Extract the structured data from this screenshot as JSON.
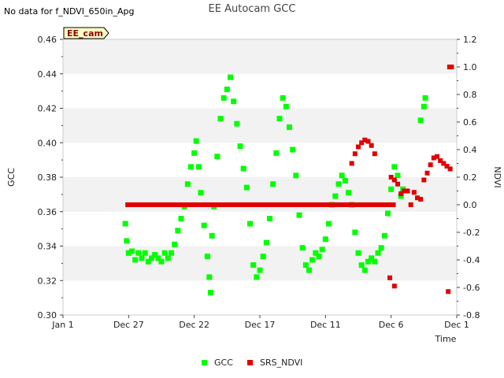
{
  "nodata_note": "No data for f_NDVI_650in_Apg",
  "badge": "EE_cam",
  "chart_data": {
    "type": "scatter",
    "title": "EE Autocam GCC",
    "xlabel": "Time",
    "ylabel": "GCC",
    "y2label": "NDVI",
    "x_categories": [
      "Jan 1",
      "Dec 27",
      "Dec 22",
      "Dec 17",
      "Dec 11",
      "Dec 6",
      "Dec 1"
    ],
    "xlim": [
      0,
      6
    ],
    "ylim": [
      0.3,
      0.46
    ],
    "y2lim": [
      -0.8,
      1.2
    ],
    "yticks": [
      "0.30",
      "0.32",
      "0.34",
      "0.36",
      "0.38",
      "0.40",
      "0.42",
      "0.44",
      "0.46"
    ],
    "y2ticks": [
      "-0.8",
      "-0.6",
      "-0.4",
      "-0.2",
      "0.0",
      "0.2",
      "0.4",
      "0.6",
      "0.8",
      "1.0",
      "1.2"
    ],
    "grid": "horizontal bands",
    "legend_position": "bottom",
    "colors": {
      "GCC": "#00ff00",
      "SRS_NDVI": "#e00000",
      "band": "#f2f2f2"
    },
    "series": [
      {
        "name": "GCC",
        "axis": "left",
        "points": [
          [
            0.95,
            0.353
          ],
          [
            0.97,
            0.343
          ],
          [
            1.0,
            0.336
          ],
          [
            1.05,
            0.337
          ],
          [
            1.1,
            0.332
          ],
          [
            1.15,
            0.336
          ],
          [
            1.2,
            0.333
          ],
          [
            1.25,
            0.336
          ],
          [
            1.3,
            0.331
          ],
          [
            1.35,
            0.333
          ],
          [
            1.4,
            0.335
          ],
          [
            1.45,
            0.333
          ],
          [
            1.5,
            0.331
          ],
          [
            1.55,
            0.336
          ],
          [
            1.6,
            0.333
          ],
          [
            1.65,
            0.336
          ],
          [
            1.7,
            0.341
          ],
          [
            1.75,
            0.349
          ],
          [
            1.8,
            0.356
          ],
          [
            1.85,
            0.363
          ],
          [
            1.9,
            0.376
          ],
          [
            1.95,
            0.386
          ],
          [
            2.0,
            0.394
          ],
          [
            2.03,
            0.401
          ],
          [
            2.07,
            0.386
          ],
          [
            2.1,
            0.371
          ],
          [
            2.15,
            0.352
          ],
          [
            2.2,
            0.334
          ],
          [
            2.23,
            0.322
          ],
          [
            2.25,
            0.313
          ],
          [
            2.27,
            0.346
          ],
          [
            2.3,
            0.363
          ],
          [
            2.35,
            0.392
          ],
          [
            2.4,
            0.414
          ],
          [
            2.45,
            0.426
          ],
          [
            2.5,
            0.431
          ],
          [
            2.55,
            0.438
          ],
          [
            2.6,
            0.424
          ],
          [
            2.65,
            0.411
          ],
          [
            2.7,
            0.398
          ],
          [
            2.75,
            0.385
          ],
          [
            2.8,
            0.374
          ],
          [
            2.85,
            0.353
          ],
          [
            2.9,
            0.329
          ],
          [
            2.95,
            0.322
          ],
          [
            3.0,
            0.326
          ],
          [
            3.05,
            0.334
          ],
          [
            3.1,
            0.342
          ],
          [
            3.15,
            0.356
          ],
          [
            3.2,
            0.376
          ],
          [
            3.25,
            0.394
          ],
          [
            3.3,
            0.414
          ],
          [
            3.35,
            0.426
          ],
          [
            3.4,
            0.421
          ],
          [
            3.45,
            0.409
          ],
          [
            3.5,
            0.396
          ],
          [
            3.55,
            0.381
          ],
          [
            3.6,
            0.358
          ],
          [
            3.65,
            0.339
          ],
          [
            3.7,
            0.329
          ],
          [
            3.75,
            0.326
          ],
          [
            3.8,
            0.332
          ],
          [
            3.85,
            0.336
          ],
          [
            3.9,
            0.334
          ],
          [
            3.95,
            0.338
          ],
          [
            4.0,
            0.344
          ],
          [
            4.05,
            0.353
          ],
          [
            4.1,
            0.364
          ],
          [
            4.15,
            0.369
          ],
          [
            4.2,
            0.376
          ],
          [
            4.25,
            0.381
          ],
          [
            4.3,
            0.378
          ],
          [
            4.35,
            0.371
          ],
          [
            4.4,
            0.364
          ],
          [
            4.45,
            0.348
          ],
          [
            4.5,
            0.336
          ],
          [
            4.55,
            0.329
          ],
          [
            4.6,
            0.326
          ],
          [
            4.65,
            0.331
          ],
          [
            4.7,
            0.333
          ],
          [
            4.75,
            0.331
          ],
          [
            4.8,
            0.336
          ],
          [
            4.85,
            0.339
          ],
          [
            4.9,
            0.346
          ],
          [
            4.95,
            0.359
          ],
          [
            5.0,
            0.373
          ],
          [
            5.05,
            0.386
          ],
          [
            5.1,
            0.381
          ],
          [
            5.15,
            0.369
          ],
          [
            5.18,
            0.373
          ],
          [
            5.45,
            0.413
          ],
          [
            5.5,
            0.421
          ],
          [
            5.52,
            0.426
          ]
        ]
      },
      {
        "name": "SRS_NDVI",
        "axis": "right",
        "segments": [
          [
            [
              0.95,
              0.0
            ],
            [
              5.07,
              0.0
            ]
          ]
        ],
        "points": [
          [
            4.4,
            0.3
          ],
          [
            4.45,
            0.37
          ],
          [
            4.5,
            0.42
          ],
          [
            4.55,
            0.45
          ],
          [
            4.6,
            0.47
          ],
          [
            4.65,
            0.46
          ],
          [
            4.7,
            0.43
          ],
          [
            4.75,
            0.37
          ],
          [
            5.0,
            0.2
          ],
          [
            5.05,
            0.18
          ],
          [
            5.1,
            0.15
          ],
          [
            5.15,
            0.08
          ],
          [
            5.2,
            0.1
          ],
          [
            5.25,
            0.1
          ],
          [
            5.3,
            0.0
          ],
          [
            5.35,
            0.09
          ],
          [
            5.4,
            0.05
          ],
          [
            5.45,
            0.04
          ],
          [
            5.5,
            0.18
          ],
          [
            5.55,
            0.23
          ],
          [
            5.6,
            0.29
          ],
          [
            5.65,
            0.34
          ],
          [
            5.7,
            0.35
          ],
          [
            5.75,
            0.32
          ],
          [
            5.8,
            0.3
          ],
          [
            5.85,
            0.28
          ],
          [
            5.9,
            0.26
          ],
          [
            4.98,
            -0.53
          ],
          [
            5.05,
            -0.59
          ],
          [
            5.87,
            -0.63
          ],
          [
            5.89,
            1.0
          ],
          [
            5.92,
            1.0
          ]
        ]
      }
    ]
  }
}
